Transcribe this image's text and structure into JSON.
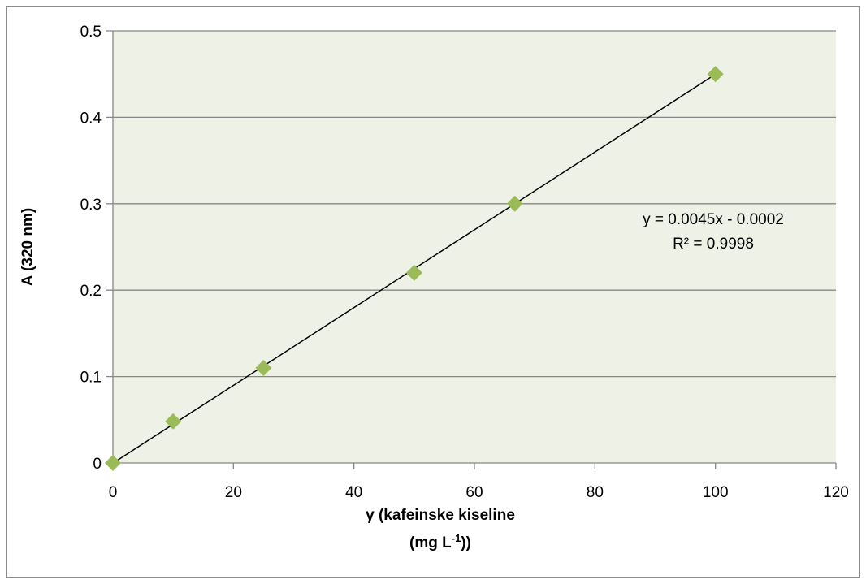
{
  "chart_data": {
    "type": "scatter",
    "x": [
      0,
      10,
      25,
      50,
      66.7,
      100
    ],
    "y": [
      0,
      0.048,
      0.11,
      0.22,
      0.3,
      0.45
    ],
    "marker": "diamond",
    "marker_color": "#9bbb59",
    "plot_background": "#eef2e6",
    "gridline_color": "#868686",
    "trendline": {
      "slope": 0.0045,
      "intercept": -0.0002,
      "x_range": [
        0,
        100
      ],
      "color": "#000000"
    },
    "equation_label": "y = 0.0045x - 0.0002",
    "r2_label": "R² = 0.9998",
    "xlim": [
      0,
      120
    ],
    "ylim": [
      0,
      0.5
    ],
    "x_ticks": [
      "0",
      "20",
      "40",
      "60",
      "80",
      "100",
      "120"
    ],
    "y_ticks": [
      "0",
      "0.1",
      "0.2",
      "0.3",
      "0.4",
      "0.5"
    ],
    "xlabel_line1": "γ (kafeinske kiseline",
    "xlabel_line2_main": "(mg L",
    "xlabel_line2_sup": "-1",
    "xlabel_line2_end": "))",
    "ylabel": "A (320 nm)",
    "grid": true,
    "legend": "none"
  }
}
